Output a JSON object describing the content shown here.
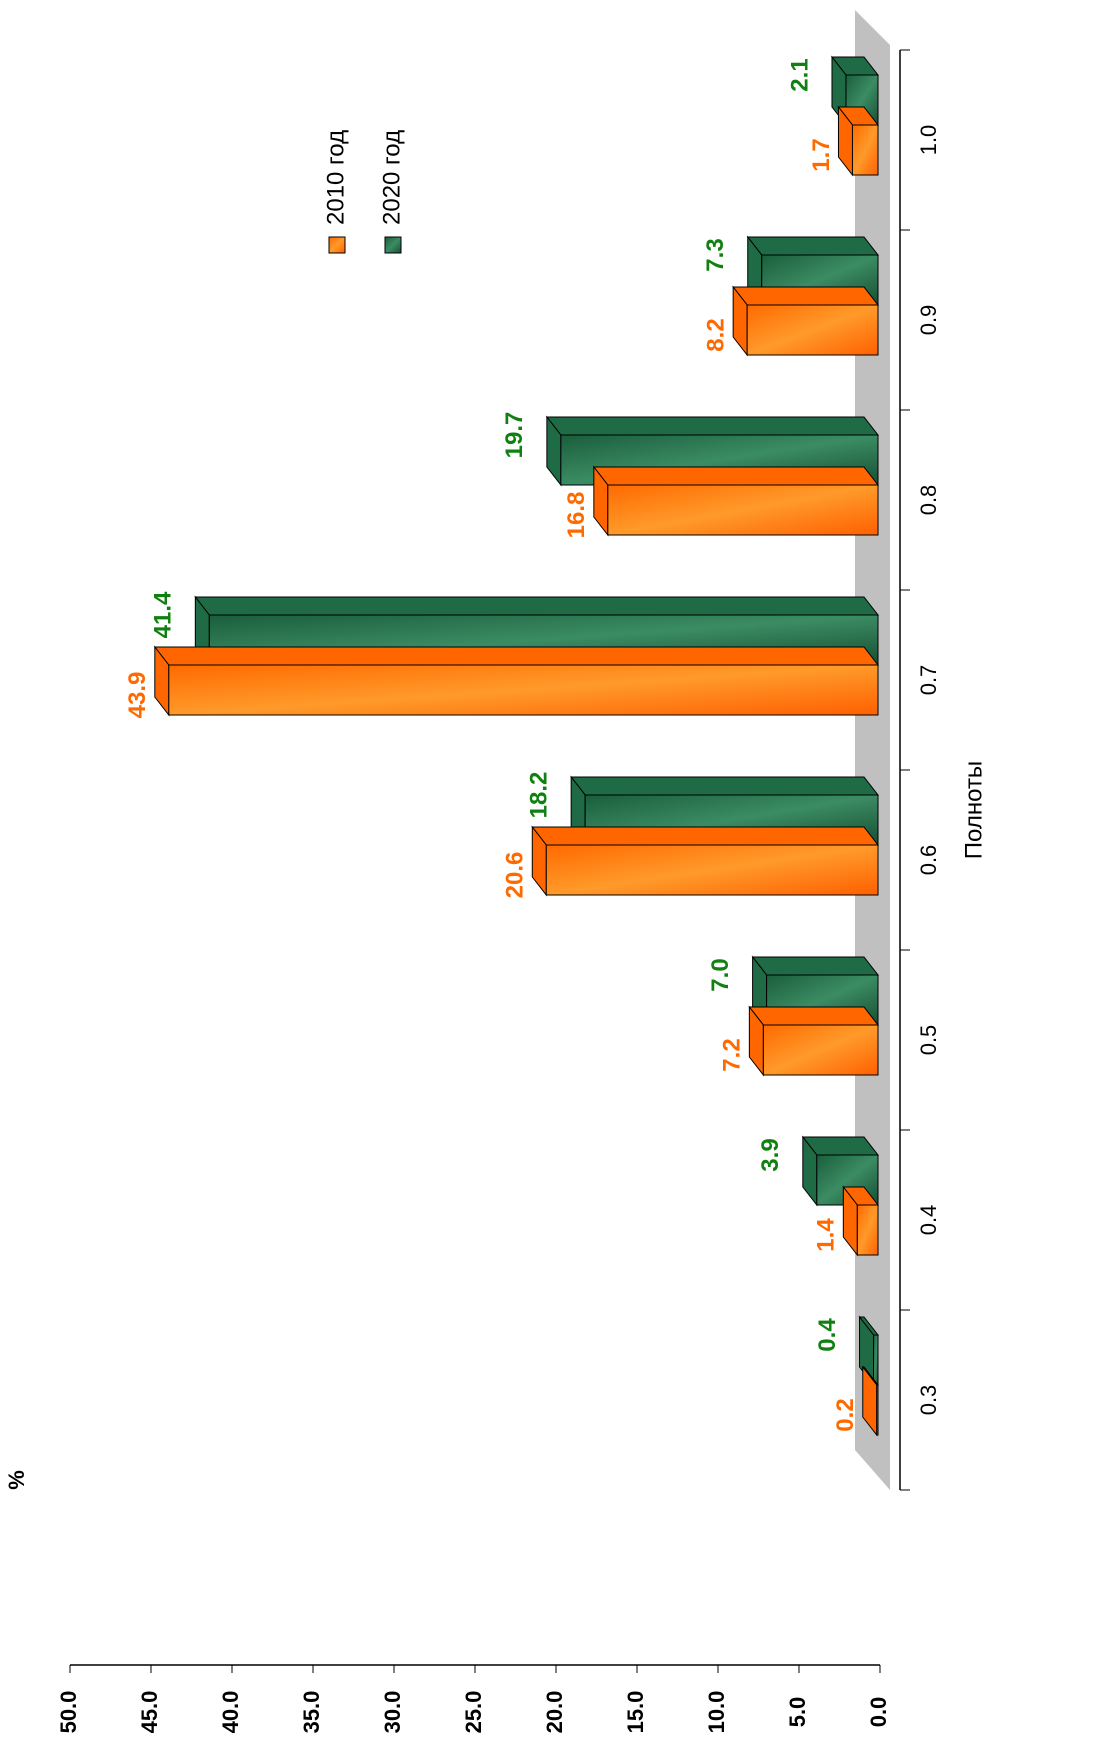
{
  "chart_data": {
    "type": "bar",
    "xlabel": "Полноты",
    "ylabel": "%",
    "categories": [
      "0.3",
      "0.4",
      "0.5",
      "0.6",
      "0.7",
      "0.8",
      "0.9",
      "1.0"
    ],
    "series": [
      {
        "name": "2010 год",
        "color": "#ff6600",
        "label_color": "#ff6a00",
        "values": [
          0.2,
          1.4,
          7.2,
          20.6,
          43.9,
          16.8,
          8.2,
          1.7
        ],
        "value_labels": [
          "0.2",
          "1.4",
          "7.2",
          "20.6",
          "43.9",
          "16.8",
          "8.2",
          "1.7"
        ]
      },
      {
        "name": "2020 год",
        "color": "#1e6b45",
        "label_color": "#108010",
        "values": [
          0.4,
          3.9,
          7.0,
          18.2,
          41.4,
          19.7,
          7.3,
          2.1
        ],
        "value_labels": [
          "0.4",
          "3.9",
          "7.0",
          "18.2",
          "41.4",
          "19.7",
          "7.3",
          "2.1"
        ]
      }
    ],
    "ylim": [
      0,
      50
    ],
    "yticks": [
      {
        "value": 0,
        "label": "0.0"
      },
      {
        "value": 5,
        "label": "5.0"
      },
      {
        "value": 10,
        "label": "10.0"
      },
      {
        "value": 15,
        "label": "15.0"
      },
      {
        "value": 20,
        "label": "20.0"
      },
      {
        "value": 25,
        "label": "25.0"
      },
      {
        "value": 30,
        "label": "30.0"
      },
      {
        "value": 35,
        "label": "35.0"
      },
      {
        "value": 40,
        "label": "40.0"
      },
      {
        "value": 45,
        "label": "45.0"
      },
      {
        "value": 50,
        "label": "50.0"
      }
    ]
  }
}
